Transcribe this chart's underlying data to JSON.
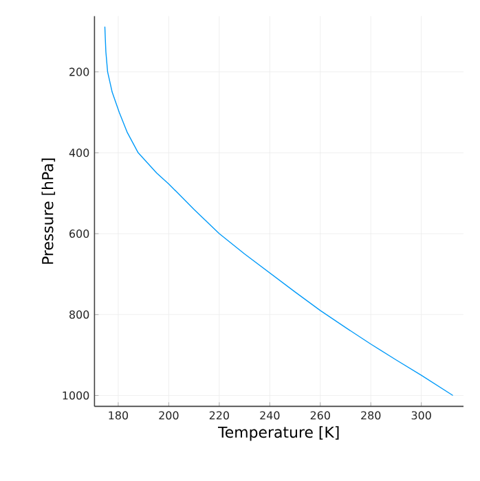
{
  "chart_data": {
    "type": "line",
    "xlabel": "Temperature [K]",
    "ylabel": "Pressure [hPa]",
    "x": [
      174.7,
      174.9,
      175.1,
      175.8,
      177.6,
      180.4,
      183.6,
      187.9,
      195.2,
      200,
      210,
      220,
      230,
      240,
      250,
      260,
      270,
      280,
      290,
      300,
      312.5
    ],
    "series": [
      {
        "color": "#009af9",
        "values": [
          88,
          120,
          150,
          200,
          250,
          300,
          350,
          400,
          450,
          477,
          540,
          600,
          650,
          697,
          744,
          790,
          832,
          873,
          912,
          950,
          1000
        ]
      }
    ],
    "xlim": [
      170.6,
      316.7
    ],
    "ylim": [
      1027,
      62
    ],
    "xticks": [
      180,
      200,
      220,
      240,
      260,
      280,
      300
    ],
    "yticks": [
      200,
      400,
      600,
      800,
      1000
    ],
    "grid": true
  }
}
